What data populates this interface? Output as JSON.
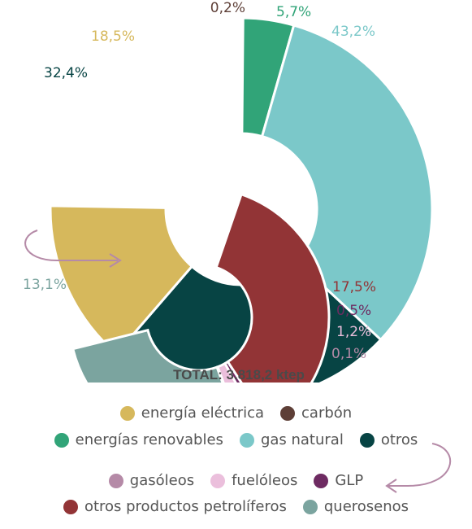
{
  "chart_data": {
    "type": "pie",
    "total_label": "TOTAL: 3.818,2 ktep",
    "outer": {
      "slices": [
        {
          "name": "carbón",
          "value": 0.2,
          "label": "0,2%",
          "color": "#5e3f37"
        },
        {
          "name": "energías renovables",
          "value": 5.7,
          "label": "5,7%",
          "color": "#31a478"
        },
        {
          "name": "gas natural",
          "value": 43.2,
          "label": "43,2%",
          "color": "#7bc8c9"
        },
        {
          "name": "otros",
          "value": 32.4,
          "label": "32,4%",
          "color": "#074444"
        },
        {
          "name": "energía eléctrica",
          "value": 18.5,
          "label": "18,5%",
          "color": "#d6b85c"
        }
      ]
    },
    "inner": {
      "slices": [
        {
          "name": "otros productos petrolíferos",
          "value": 17.5,
          "label": "17,5%",
          "color": "#923436"
        },
        {
          "name": "GLP",
          "value": 0.5,
          "label": "0,5%",
          "color": "#6e2b62"
        },
        {
          "name": "fuelóleos",
          "value": 1.2,
          "label": "1,2%",
          "color": "#ebbfdc"
        },
        {
          "name": "gasóleos",
          "value": 0.1,
          "label": "0,1%",
          "color": "#b58aa7"
        },
        {
          "name": "querosenos",
          "value": 13.1,
          "label": "13,1%",
          "color": "#7ba49f"
        }
      ]
    },
    "legend": [
      [
        {
          "name": "energía eléctrica",
          "color": "#d6b85c"
        },
        {
          "name": "carbón",
          "color": "#5e3f37"
        }
      ],
      [
        {
          "name": "energías renovables",
          "color": "#31a478"
        },
        {
          "name": "gas natural",
          "color": "#7bc8c9"
        },
        {
          "name": "otros",
          "color": "#074444"
        }
      ],
      [
        {
          "name": "gasóleos",
          "color": "#b58aa7"
        },
        {
          "name": "fuelóleos",
          "color": "#ebbfdc"
        },
        {
          "name": "GLP",
          "color": "#6e2b62"
        }
      ],
      [
        {
          "name": "otros productos petrolíferos",
          "color": "#923436"
        },
        {
          "name": "querosenos",
          "color": "#7ba49f"
        }
      ]
    ],
    "arrow_color": "#b58aa7"
  }
}
